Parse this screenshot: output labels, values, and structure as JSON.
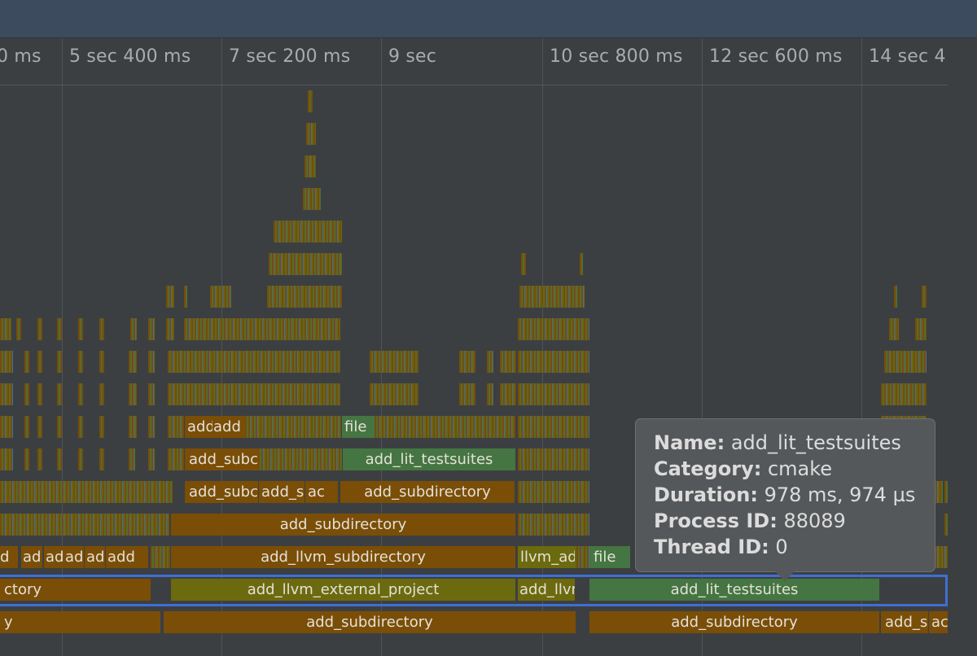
{
  "ruler": {
    "ticks": [
      "0 ms",
      "5 sec 400 ms",
      "7 sec 200 ms",
      "9 sec",
      "10 sec 800 ms",
      "12 sec 600 ms",
      "14 sec 4"
    ]
  },
  "flame": {
    "labels": {
      "row0_a": "ctory",
      "row0_b": "add_llvm_external_project",
      "row0_c": "add_llvr",
      "row0_d": "add_lit_testsuites",
      "rowb_a": "y",
      "rowb_b": "add_subdirectory",
      "rowb_c": "add_subdirectory",
      "rowb_d": "add_s",
      "rowb_e": "ac",
      "row1_a": "d",
      "row1_b": "ad",
      "row1_c": "ad",
      "row1_d": "ad",
      "row1_e": "ad",
      "row1_f": "add",
      "row1_g": "add_llvm_subdirectory",
      "row1_h": "llvm_ad",
      "row1_i": "file",
      "row2_a": "add_subdirectory",
      "row3_a": "add_subc",
      "row3_b": "add_s",
      "row3_c": "ac",
      "row3_d": "add_subdirectory",
      "row4_a": "add_subc",
      "row4_b": "add_lit_testsuites",
      "row5_a": "add",
      "row5_b": "add",
      "row5_c": "file"
    },
    "colors": {
      "orange": "#7a4e07",
      "green": "#457542",
      "olive": "#6c6a0e",
      "blue": "#3f6fd4"
    }
  },
  "tooltip": {
    "name_label": "Name:",
    "name_value": "add_lit_testsuites",
    "category_label": "Category:",
    "category_value": "cmake",
    "duration_label": "Duration:",
    "duration_value": "978 ms, 974 µs",
    "process_label": "Process ID:",
    "process_value": "88089",
    "thread_label": "Thread ID:",
    "thread_value": "0"
  }
}
